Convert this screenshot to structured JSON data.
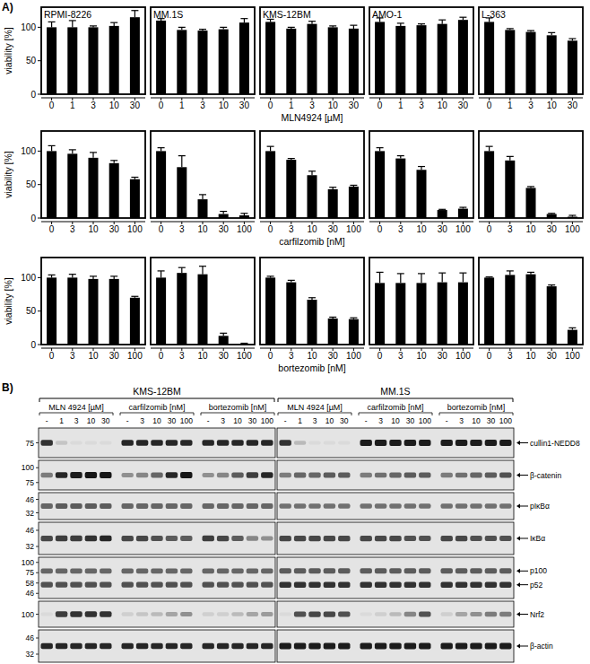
{
  "panel_labels": [
    "A)",
    "B)"
  ],
  "chart_data": [
    {
      "type": "bar",
      "title": "RPMI-8226",
      "categories": [
        "0",
        "1",
        "3",
        "10",
        "30"
      ],
      "values": [
        100,
        100,
        100,
        102,
        115
      ],
      "errors": [
        8,
        10,
        2,
        5,
        10
      ],
      "color": "#000000",
      "ylim": [
        0,
        130
      ],
      "yticks": [
        0,
        50,
        100
      ],
      "y_label": "viability [%]"
    },
    {
      "type": "bar",
      "title": "MM.1S",
      "categories": [
        "0",
        "1",
        "3",
        "10",
        "30"
      ],
      "values": [
        110,
        96,
        95,
        97,
        107
      ],
      "errors": [
        3,
        4,
        2,
        3,
        6
      ],
      "color": "#000000",
      "ylim": [
        0,
        130
      ],
      "yticks": [
        0,
        50,
        100
      ],
      "tick_labels": "x"
    },
    {
      "type": "bar",
      "title": "KMS-12BM",
      "categories": [
        "0",
        "1",
        "3",
        "10",
        "30"
      ],
      "values": [
        108,
        98,
        105,
        100,
        98
      ],
      "errors": [
        4,
        2,
        4,
        2,
        5
      ],
      "color": "#000000",
      "ylim": [
        0,
        130
      ],
      "yticks": [
        0,
        50,
        100
      ],
      "tick_labels": "x",
      "x_label": "MLN4924 [µM]"
    },
    {
      "type": "bar",
      "title": "AMO-1",
      "categories": [
        "0",
        "1",
        "3",
        "10",
        "30"
      ],
      "values": [
        108,
        102,
        103,
        105,
        111
      ],
      "errors": [
        6,
        4,
        2,
        6,
        4
      ],
      "color": "#000000",
      "ylim": [
        0,
        130
      ],
      "yticks": [
        0,
        50,
        100
      ],
      "tick_labels": "x"
    },
    {
      "type": "bar",
      "title": "L-363",
      "categories": [
        "0",
        "1",
        "3",
        "10",
        "30"
      ],
      "values": [
        108,
        96,
        93,
        88,
        80
      ],
      "errors": [
        6,
        2,
        2,
        4,
        3
      ],
      "color": "#000000",
      "ylim": [
        0,
        130
      ],
      "yticks": [
        0,
        50,
        100
      ],
      "tick_labels": "x"
    },
    {
      "type": "bar",
      "categories": [
        "0",
        "3",
        "10",
        "30",
        "100"
      ],
      "values": [
        100,
        96,
        90,
        82,
        58
      ],
      "errors": [
        8,
        6,
        8,
        4,
        3
      ],
      "color": "#000000",
      "ylim": [
        0,
        130
      ],
      "yticks": [
        0,
        50,
        100
      ],
      "y_label": "viability [%]"
    },
    {
      "type": "bar",
      "categories": [
        "0",
        "3",
        "10",
        "30",
        "100"
      ],
      "values": [
        100,
        76,
        28,
        6,
        4
      ],
      "errors": [
        5,
        17,
        7,
        4,
        3
      ],
      "color": "#000000",
      "ylim": [
        0,
        130
      ],
      "yticks": [
        0,
        50,
        100
      ],
      "tick_labels": "x"
    },
    {
      "type": "bar",
      "categories": [
        "0",
        "3",
        "10",
        "30",
        "100"
      ],
      "values": [
        100,
        87,
        64,
        43,
        47
      ],
      "errors": [
        7,
        2,
        6,
        3,
        2
      ],
      "color": "#000000",
      "ylim": [
        0,
        130
      ],
      "yticks": [
        0,
        50,
        100
      ],
      "tick_labels": "x",
      "x_label": "carfilzomib [nM]"
    },
    {
      "type": "bar",
      "categories": [
        "0",
        "3",
        "10",
        "30",
        "100"
      ],
      "values": [
        100,
        89,
        72,
        12,
        14
      ],
      "errors": [
        5,
        4,
        5,
        1,
        2
      ],
      "color": "#000000",
      "ylim": [
        0,
        130
      ],
      "yticks": [
        0,
        50,
        100
      ],
      "tick_labels": "x"
    },
    {
      "type": "bar",
      "categories": [
        "0",
        "3",
        "10",
        "30",
        "100"
      ],
      "values": [
        100,
        86,
        45,
        6,
        2
      ],
      "errors": [
        7,
        6,
        2,
        1,
        2
      ],
      "color": "#000000",
      "ylim": [
        0,
        130
      ],
      "yticks": [
        0,
        50,
        100
      ],
      "tick_labels": "x"
    },
    {
      "type": "bar",
      "categories": [
        "0",
        "3",
        "10",
        "30",
        "100"
      ],
      "values": [
        100,
        100,
        98,
        98,
        70
      ],
      "errors": [
        4,
        5,
        4,
        4,
        2
      ],
      "color": "#000000",
      "ylim": [
        0,
        130
      ],
      "yticks": [
        0,
        50,
        100
      ],
      "y_label": "viability [%]"
    },
    {
      "type": "bar",
      "categories": [
        "0",
        "3",
        "10",
        "30",
        "100"
      ],
      "values": [
        100,
        107,
        105,
        13,
        1
      ],
      "errors": [
        10,
        8,
        12,
        4,
        1
      ],
      "color": "#000000",
      "ylim": [
        0,
        130
      ],
      "yticks": [
        0,
        50,
        100
      ],
      "tick_labels": "x"
    },
    {
      "type": "bar",
      "categories": [
        "0",
        "3",
        "10",
        "30",
        "100"
      ],
      "values": [
        100,
        93,
        67,
        39,
        38
      ],
      "errors": [
        2,
        3,
        3,
        2,
        2
      ],
      "color": "#000000",
      "ylim": [
        0,
        130
      ],
      "yticks": [
        0,
        50,
        100
      ],
      "tick_labels": "x",
      "x_label": "bortezomib [nM]"
    },
    {
      "type": "bar",
      "categories": [
        "0",
        "3",
        "10",
        "30",
        "100"
      ],
      "values": [
        92,
        92,
        92,
        93,
        93
      ],
      "errors": [
        16,
        14,
        14,
        14,
        14
      ],
      "color": "#000000",
      "ylim": [
        0,
        130
      ],
      "yticks": [
        0,
        50,
        100
      ],
      "tick_labels": "x"
    },
    {
      "type": "bar",
      "categories": [
        "0",
        "3",
        "10",
        "30",
        "100"
      ],
      "values": [
        100,
        104,
        105,
        87,
        22
      ],
      "errors": [
        1,
        6,
        3,
        2,
        3
      ],
      "color": "#000000",
      "ylim": [
        0,
        130
      ],
      "yticks": [
        0,
        50,
        100
      ],
      "tick_labels": "x"
    }
  ],
  "blot": {
    "cell_lines": [
      "KMS-12BM",
      "MM.1S"
    ],
    "treatments": [
      {
        "label": "MLN 4924 [µM]",
        "lanes": [
          "-",
          "1",
          "3",
          "10",
          "30"
        ]
      },
      {
        "label": "carfilzomib [nM]",
        "lanes": [
          "-",
          "3",
          "10",
          "30",
          "100"
        ]
      },
      {
        "label": "bortezomib [nM]",
        "lanes": [
          "-",
          "3",
          "10",
          "30",
          "100"
        ]
      }
    ],
    "strips": [
      {
        "markers": [
          75
        ]
      },
      {
        "markers": [
          100,
          75
        ]
      },
      {
        "markers": [
          46,
          32
        ]
      },
      {
        "markers": [
          46,
          32
        ]
      },
      {
        "markers": [
          100,
          75,
          58,
          46
        ]
      },
      {
        "markers": [
          100
        ]
      },
      {
        "markers": [
          46,
          32
        ]
      }
    ],
    "bands": [
      {
        "label": "cullin1-NEDD8",
        "strip": 0,
        "intensity": [
          [
            0.85,
            0.15,
            0.05,
            0.05,
            0.05,
            0.9,
            0.9,
            0.9,
            0.9,
            0.9,
            0.9,
            0.9,
            0.9,
            0.9,
            0.9
          ],
          [
            0.85,
            0.2,
            0.05,
            0.05,
            0.05,
            0.95,
            0.95,
            0.95,
            0.95,
            0.95,
            0.95,
            0.95,
            0.95,
            0.95,
            0.95
          ]
        ]
      },
      {
        "label": "β-catenin",
        "strip": 1,
        "intensity": [
          [
            0.5,
            0.9,
            0.95,
            1,
            1,
            0.4,
            0.45,
            0.6,
            0.9,
            1,
            0.4,
            0.45,
            0.65,
            0.8,
            0.9
          ],
          [
            0.5,
            0.6,
            0.6,
            0.65,
            0.65,
            0.5,
            0.55,
            0.6,
            0.65,
            0.65,
            0.5,
            0.55,
            0.6,
            0.65,
            0.7
          ]
        ]
      },
      {
        "label": "pIκBα",
        "strip": 2,
        "intensity": [
          [
            0.6,
            0.65,
            0.65,
            0.65,
            0.65,
            0.6,
            0.6,
            0.6,
            0.6,
            0.6,
            0.6,
            0.6,
            0.6,
            0.6,
            0.6
          ],
          [
            0.55,
            0.55,
            0.55,
            0.55,
            0.55,
            0.55,
            0.55,
            0.55,
            0.55,
            0.55,
            0.55,
            0.55,
            0.55,
            0.55,
            0.55
          ]
        ]
      },
      {
        "label": "IκBα",
        "strip": 3,
        "intensity": [
          [
            0.75,
            0.8,
            0.8,
            0.85,
            0.9,
            0.75,
            0.75,
            0.7,
            0.65,
            0.65,
            0.8,
            0.75,
            0.65,
            0.45,
            0.4
          ],
          [
            0.75,
            0.75,
            0.75,
            0.75,
            0.75,
            0.75,
            0.75,
            0.75,
            0.7,
            0.7,
            0.75,
            0.75,
            0.7,
            0.7,
            0.7
          ]
        ]
      },
      {
        "label": "p100",
        "strip": 4,
        "intensity": [
          [
            0.6,
            0.6,
            0.6,
            0.6,
            0.6,
            0.6,
            0.6,
            0.6,
            0.6,
            0.6,
            0.6,
            0.6,
            0.6,
            0.6,
            0.6
          ],
          [
            0.65,
            0.65,
            0.65,
            0.65,
            0.65,
            0.65,
            0.65,
            0.65,
            0.65,
            0.65,
            0.65,
            0.65,
            0.65,
            0.65,
            0.65
          ]
        ]
      },
      {
        "label": "p52",
        "strip": 4,
        "intensity": [
          [
            0.7,
            0.7,
            0.7,
            0.7,
            0.7,
            0.7,
            0.7,
            0.7,
            0.7,
            0.7,
            0.7,
            0.7,
            0.7,
            0.7,
            0.7
          ],
          [
            0.85,
            0.85,
            0.85,
            0.85,
            0.85,
            0.85,
            0.85,
            0.85,
            0.85,
            0.85,
            0.85,
            0.85,
            0.85,
            0.85,
            0.85
          ]
        ]
      },
      {
        "label": "Nrf2",
        "strip": 5,
        "intensity": [
          [
            0.05,
            0.8,
            0.85,
            0.85,
            0.85,
            0.1,
            0.15,
            0.2,
            0.3,
            0.4,
            0.1,
            0.1,
            0.2,
            0.3,
            0.35
          ],
          [
            0.05,
            0.7,
            0.75,
            0.75,
            0.7,
            0.05,
            0.1,
            0.2,
            0.45,
            0.7,
            0.1,
            0.3,
            0.4,
            0.5,
            0.5
          ]
        ]
      },
      {
        "label": "β-actin",
        "strip": 6,
        "intensity": [
          [
            0.9,
            0.9,
            0.9,
            0.9,
            0.9,
            0.9,
            0.9,
            0.9,
            0.9,
            0.9,
            0.9,
            0.9,
            0.9,
            0.9,
            0.9
          ],
          [
            0.95,
            0.95,
            0.95,
            0.95,
            0.95,
            0.95,
            0.95,
            0.95,
            0.95,
            0.95,
            0.95,
            0.95,
            0.95,
            0.95,
            0.95
          ]
        ]
      }
    ]
  }
}
